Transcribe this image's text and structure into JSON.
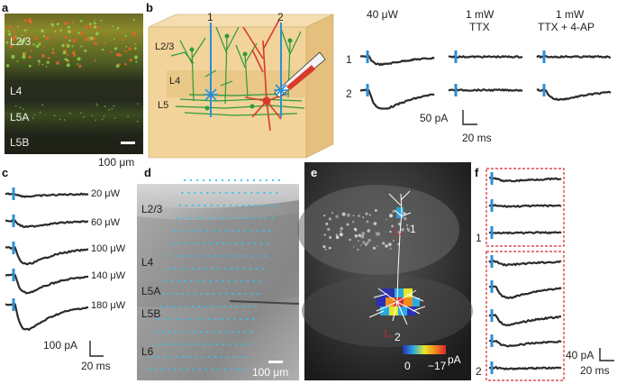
{
  "panels": {
    "a": {
      "letter": "a",
      "layers": [
        "L2/3",
        "L4",
        "L5A",
        "L5B"
      ],
      "scale_bar": "100 μm"
    },
    "b": {
      "letter": "b",
      "diagram_layers": [
        "L2/3",
        "L4",
        "L5"
      ],
      "sites": [
        "1",
        "2"
      ],
      "conditions": [
        "40 μW",
        "1 mW",
        "1 mW"
      ],
      "condition_sub": [
        "",
        "TTX",
        "TTX + 4-AP"
      ],
      "row_labels": [
        "1",
        "2"
      ],
      "scale_y": "50 pA",
      "scale_x": "20 ms"
    },
    "c": {
      "letter": "c",
      "powers": [
        "20 μW",
        "60 μW",
        "100 μW",
        "140 μW",
        "180 μW"
      ],
      "scale_y": "100 pA",
      "scale_x": "20 ms"
    },
    "d": {
      "letter": "d",
      "layers": [
        "L2/3",
        "L4",
        "L5A",
        "L5B",
        "L6"
      ],
      "scale_bar": "100 μm"
    },
    "e": {
      "letter": "e",
      "sites": [
        "1",
        "2"
      ],
      "colorbar_min": "0",
      "colorbar_max": "−17",
      "colorbar_unit": "pA"
    },
    "f": {
      "letter": "f",
      "group_labels": [
        "1",
        "2"
      ],
      "scale_y": "40 pA",
      "scale_x": "20 ms"
    }
  },
  "colors": {
    "stim_tick": "#2a8fd6",
    "trace": "#2b2b2b",
    "grid_dot": "#33c4ee",
    "slab": "#f2d39a",
    "neuron_green": "#2e9a3c",
    "neuron_red": "#d93a2a",
    "box_red": "#d9262b"
  }
}
